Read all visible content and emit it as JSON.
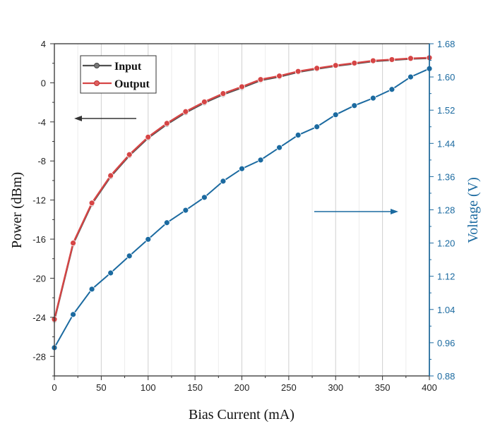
{
  "chart_data": {
    "type": "line",
    "xlabel": "Bias Current (mA)",
    "ylabel": "Power (dBm)",
    "y2label": "Voltage (V)",
    "xlim": [
      0,
      400
    ],
    "ylim": [
      -30,
      4
    ],
    "y2lim": [
      0.88,
      1.68
    ],
    "xticks": [
      0,
      50,
      100,
      150,
      200,
      250,
      300,
      350,
      400
    ],
    "yticks": [
      4,
      0,
      -4,
      -8,
      -12,
      -16,
      -20,
      -24,
      -28
    ],
    "y2ticks": [
      "1.68",
      "1.60",
      "1.52",
      "1.44",
      "1.36",
      "1.28",
      "1.20",
      "1.12",
      "1.04",
      "0.96",
      "0.88"
    ],
    "grid": "vertical",
    "legend_position": "top-left",
    "x": [
      0,
      20,
      40,
      60,
      80,
      100,
      120,
      140,
      160,
      180,
      200,
      220,
      240,
      260,
      280,
      300,
      320,
      340,
      360,
      380,
      400
    ],
    "series": [
      {
        "name": "Input",
        "axis": "left",
        "color": "#505050",
        "values": [
          -24.3,
          -16.5,
          -12.4,
          -9.6,
          -7.45,
          -5.65,
          -4.25,
          -3.05,
          -2.05,
          -1.2,
          -0.5,
          0.25,
          0.62,
          1.1,
          1.42,
          1.72,
          1.96,
          2.2,
          2.33,
          2.45,
          2.52
        ]
      },
      {
        "name": "Output",
        "axis": "left",
        "color": "#d64545",
        "values": [
          -24.2,
          -16.4,
          -12.3,
          -9.5,
          -7.35,
          -5.55,
          -4.15,
          -2.95,
          -1.95,
          -1.1,
          -0.4,
          0.34,
          0.7,
          1.17,
          1.49,
          1.78,
          2.02,
          2.26,
          2.38,
          2.5,
          2.57
        ]
      },
      {
        "name": "Voltage",
        "axis": "right",
        "color": "#1b6aa0",
        "values": [
          0.948,
          1.028,
          1.089,
          1.128,
          1.169,
          1.209,
          1.249,
          1.279,
          1.31,
          1.349,
          1.379,
          1.4,
          1.43,
          1.46,
          1.48,
          1.509,
          1.531,
          1.549,
          1.57,
          1.6,
          1.62
        ]
      }
    ],
    "annotations": [
      "left arrow pointing to Power axis",
      "right arrow pointing to Voltage axis"
    ]
  }
}
